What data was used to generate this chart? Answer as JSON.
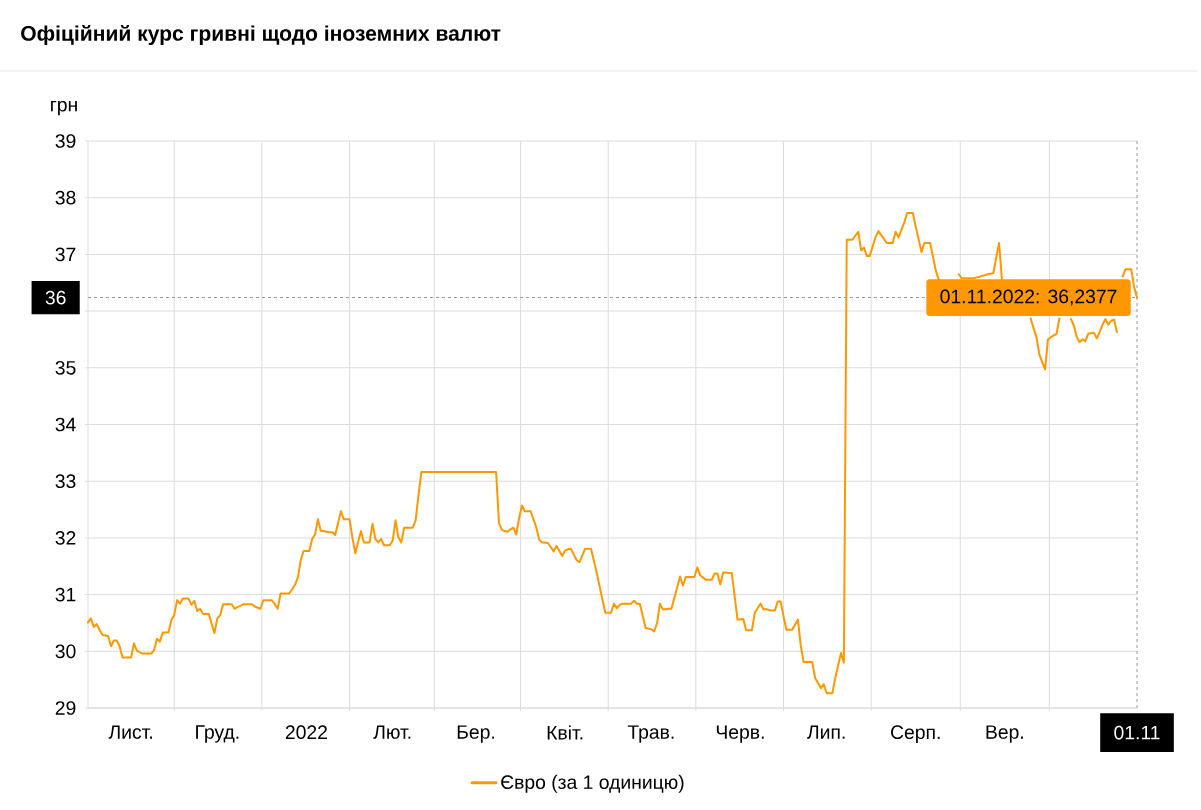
{
  "chart_data": {
    "type": "line",
    "title": "Офіційний курс гривні щодо іноземних валют",
    "ylabel": "грн",
    "categories": [
      null,
      null,
      null,
      null,
      null,
      null,
      null,
      null,
      null,
      null,
      null,
      null,
      null,
      null,
      null,
      "Лист.",
      null,
      null,
      null,
      null,
      null,
      null,
      null,
      null,
      null,
      null,
      null,
      null,
      null,
      null,
      null,
      null,
      null,
      null,
      null,
      null,
      null,
      null,
      null,
      null,
      null,
      null,
      null,
      null,
      null,
      "Груд.",
      null,
      null,
      null,
      null,
      null,
      null,
      null,
      null,
      null,
      null,
      null,
      null,
      null,
      null,
      null,
      null,
      null,
      null,
      null,
      null,
      null,
      null,
      null,
      null,
      null,
      null,
      null,
      null,
      null,
      null,
      "2022",
      null,
      null,
      null,
      null,
      null,
      null,
      null,
      null,
      null,
      null,
      null,
      null,
      null,
      null,
      null,
      null,
      null,
      null,
      null,
      null,
      null,
      null,
      null,
      null,
      null,
      null,
      null,
      null,
      null,
      "Лют.",
      null,
      null,
      null,
      null,
      null,
      null,
      null,
      null,
      null,
      null,
      null,
      null,
      null,
      null,
      null,
      null,
      null,
      null,
      null,
      null,
      null,
      null,
      null,
      null,
      null,
      null,
      null,
      null,
      "Бер.",
      null,
      null,
      null,
      null,
      null,
      null,
      null,
      null,
      null,
      null,
      null,
      null,
      null,
      null,
      null,
      null,
      null,
      null,
      null,
      null,
      null,
      null,
      null,
      null,
      null,
      null,
      null,
      null,
      null,
      null,
      "Квіт.",
      null,
      null,
      null,
      null,
      null,
      null,
      null,
      null,
      null,
      null,
      null,
      null,
      null,
      null,
      null,
      null,
      null,
      null,
      null,
      null,
      null,
      null,
      null,
      null,
      null,
      null,
      null,
      null,
      null,
      "Трав.",
      null,
      null,
      null,
      null,
      null,
      null,
      null,
      null,
      null,
      null,
      null,
      null,
      null,
      null,
      null,
      null,
      null,
      null,
      null,
      null,
      null,
      null,
      null,
      null,
      null,
      null,
      null,
      null,
      null,
      null,
      "Черв.",
      null,
      null,
      null,
      null,
      null,
      null,
      null,
      null,
      null,
      null,
      null,
      null,
      null,
      null,
      null,
      null,
      null,
      null,
      null,
      null,
      null,
      null,
      null,
      null,
      null,
      null,
      null,
      null,
      null,
      "Лип.",
      null,
      null,
      null,
      null,
      null,
      null,
      null,
      null,
      null,
      null,
      null,
      null,
      null,
      null,
      null,
      null,
      null,
      null,
      null,
      null,
      null,
      null,
      null,
      null,
      null,
      null,
      null,
      null,
      null,
      null,
      "Серп.",
      null,
      null,
      null,
      null,
      null,
      null,
      null,
      null,
      null,
      null,
      null,
      null,
      null,
      null,
      null,
      null,
      null,
      null,
      null,
      null,
      null,
      null,
      null,
      null,
      null,
      null,
      null,
      null,
      null,
      null,
      "Вер.",
      null,
      null,
      null,
      null,
      null,
      null,
      null,
      null,
      null,
      null,
      null,
      null,
      null,
      null,
      null,
      null,
      null,
      null,
      null,
      null,
      null,
      null,
      null,
      null,
      null,
      null,
      null,
      null,
      null,
      null,
      null,
      null,
      null,
      null,
      null,
      null,
      null,
      null,
      null,
      null,
      null,
      null,
      null,
      null,
      null,
      "01.11"
    ],
    "series": [
      {
        "name": "Євро (за 1 одиницю)",
        "color": "#ff9800",
        "values": [
          30.51,
          30.58,
          30.43,
          30.48,
          30.38,
          30.29,
          30.28,
          30.27,
          30.09,
          30.19,
          30.19,
          30.09,
          29.89,
          29.89,
          29.89,
          29.89,
          30.14,
          30.01,
          29.98,
          29.96,
          29.96,
          29.96,
          29.96,
          30.02,
          30.22,
          30.17,
          30.33,
          30.33,
          30.33,
          30.55,
          30.64,
          30.9,
          30.84,
          30.93,
          30.93,
          30.93,
          30.82,
          30.89,
          30.71,
          30.75,
          30.66,
          30.66,
          30.66,
          30.49,
          30.32,
          30.58,
          30.64,
          30.83,
          30.83,
          30.83,
          30.83,
          30.75,
          30.78,
          30.8,
          30.83,
          30.83,
          30.83,
          30.83,
          30.79,
          30.77,
          30.75,
          30.9,
          30.9,
          30.9,
          30.9,
          30.83,
          30.75,
          31.02,
          31.02,
          31.02,
          31.02,
          31.09,
          31.17,
          31.3,
          31.6,
          31.77,
          31.77,
          31.77,
          31.98,
          32.06,
          32.33,
          32.12,
          32.12,
          32.11,
          32.1,
          32.1,
          32.05,
          32.26,
          32.47,
          32.33,
          32.33,
          32.33,
          32.0,
          31.73,
          31.93,
          32.12,
          31.92,
          31.92,
          31.92,
          32.25,
          31.98,
          31.92,
          31.98,
          31.87,
          31.87,
          31.87,
          31.95,
          32.31,
          32.01,
          31.92,
          32.18,
          32.18,
          32.18,
          32.18,
          32.31,
          32.76,
          33.16,
          33.16,
          33.16,
          33.16,
          33.16,
          33.16,
          33.16,
          33.16,
          33.16,
          33.16,
          33.16,
          33.16,
          33.16,
          33.16,
          33.16,
          33.16,
          33.16,
          33.16,
          33.16,
          33.16,
          33.16,
          33.16,
          33.16,
          33.16,
          33.16,
          33.16,
          33.16,
          32.26,
          32.14,
          32.12,
          32.11,
          32.15,
          32.18,
          32.06,
          32.35,
          32.57,
          32.47,
          32.47,
          32.47,
          32.33,
          32.18,
          31.97,
          31.92,
          31.92,
          31.91,
          31.84,
          31.76,
          31.86,
          31.77,
          31.68,
          31.78,
          31.8,
          31.81,
          31.71,
          31.61,
          31.57,
          31.69,
          31.81,
          31.81,
          31.81,
          31.6,
          31.38,
          31.15,
          30.91,
          30.68,
          30.68,
          30.68,
          30.84,
          30.76,
          30.82,
          30.84,
          30.84,
          30.84,
          30.84,
          30.89,
          30.84,
          30.84,
          30.63,
          30.41,
          30.4,
          30.39,
          30.35,
          30.5,
          30.84,
          30.74,
          30.74,
          30.75,
          30.75,
          30.94,
          31.13,
          31.32,
          31.16,
          31.31,
          31.31,
          31.31,
          31.31,
          31.48,
          31.34,
          31.3,
          31.26,
          31.26,
          31.26,
          31.37,
          31.37,
          31.18,
          31.39,
          31.39,
          31.38,
          31.38,
          30.97,
          30.56,
          30.56,
          30.57,
          30.37,
          30.37,
          30.37,
          30.68,
          30.76,
          30.84,
          30.74,
          30.74,
          30.73,
          30.72,
          30.72,
          30.88,
          30.88,
          30.62,
          30.38,
          30.38,
          30.38,
          30.47,
          30.56,
          30.1,
          29.81,
          29.81,
          29.81,
          29.81,
          29.53,
          29.44,
          29.35,
          29.42,
          29.26,
          29.26,
          29.26,
          29.53,
          29.75,
          29.97,
          29.8,
          37.26,
          37.26,
          37.26,
          37.33,
          37.4,
          37.07,
          37.12,
          36.97,
          36.97,
          37.14,
          37.3,
          37.41,
          37.34,
          37.27,
          37.2,
          37.2,
          37.2,
          37.4,
          37.3,
          37.43,
          37.56,
          37.73,
          37.73,
          37.73,
          37.49,
          37.27,
          37.04,
          37.2,
          37.2,
          37.2,
          36.96,
          36.71,
          36.56,
          null,
          null,
          null,
          null,
          null,
          null,
          36.65,
          36.58,
          36.58,
          36.58,
          36.58,
          36.58,
          36.59,
          36.6,
          36.62,
          36.63,
          36.65,
          36.66,
          36.67,
          36.94,
          37.2,
          36.56,
          null,
          null,
          null,
          null,
          null,
          null,
          null,
          null,
          null,
          35.87,
          35.7,
          35.54,
          35.24,
          35.1,
          34.97,
          35.5,
          35.54,
          35.57,
          35.6,
          35.87,
          null,
          null,
          null,
          35.86,
          35.75,
          35.55,
          35.45,
          35.5,
          35.47,
          35.6,
          35.61,
          35.62,
          35.52,
          35.63,
          35.76,
          35.86,
          35.76,
          35.83,
          35.85,
          35.63,
          null,
          36.61,
          36.74,
          36.74,
          36.74,
          36.42,
          36.2377
        ]
      }
    ],
    "ylim": [
      29,
      39
    ],
    "yticks": [
      29,
      30,
      31,
      32,
      33,
      34,
      35,
      {
        "value": 36,
        "label": null
      },
      37,
      38,
      39
    ],
    "grid": true,
    "legend": "bottom",
    "marker": "none",
    "line_style": "solid",
    "ref_lines": [
      {
        "axis": "y",
        "value": 36.2377,
        "label": "36",
        "color": "#999999",
        "line_style": "dashed"
      },
      {
        "axis": "x",
        "value": "01.11",
        "color": "#999999",
        "line_style": "dashed"
      }
    ],
    "annotations": [
      {
        "text": "01.11.2022: 36,2377",
        "x": "01.11",
        "y": 36.2377
      }
    ]
  }
}
